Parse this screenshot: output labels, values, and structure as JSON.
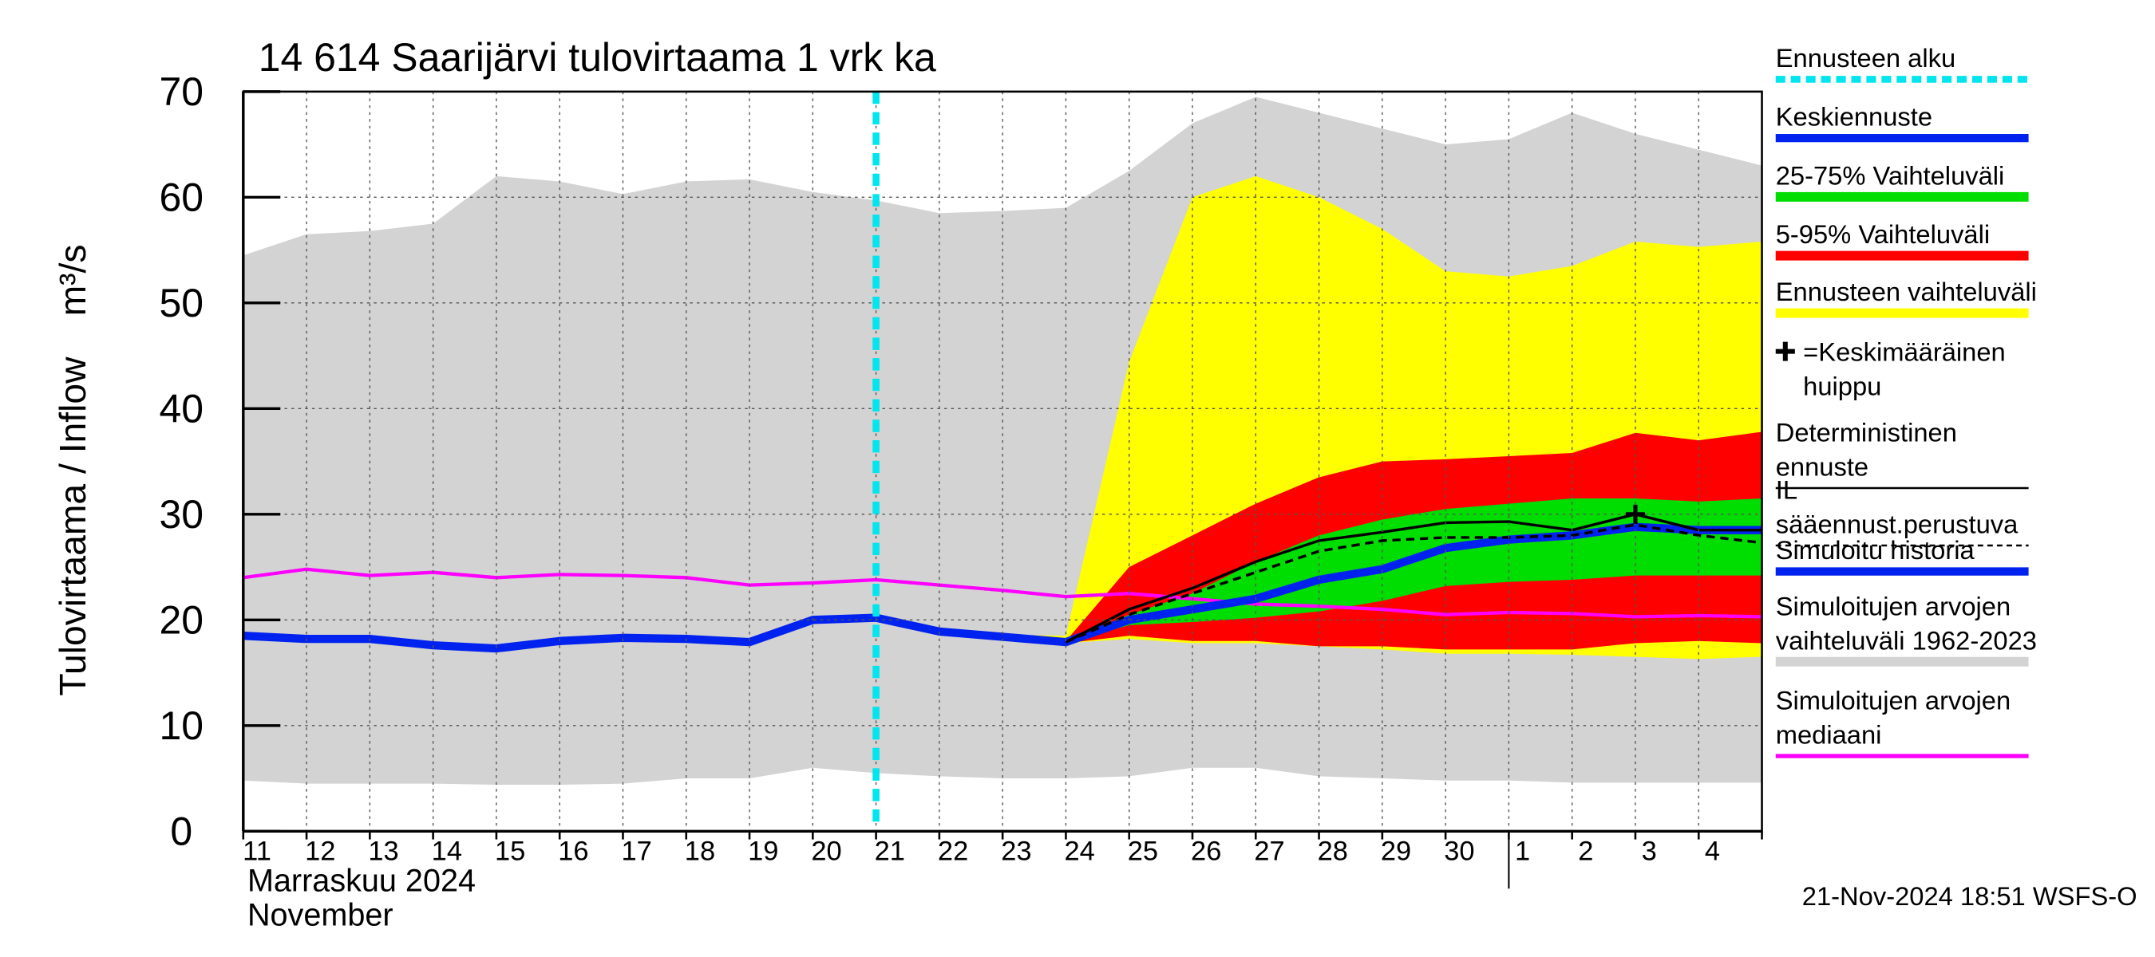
{
  "chart_data": {
    "type": "area",
    "title": "14 614 Saarijärvi tulovirtaama 1 vrk ka",
    "y_label": "Tulovirtaama / Inflow",
    "y_unit": "m³/s",
    "month_label": "Marraskuu 2024",
    "month_label_en": "November",
    "footer": "21-Nov-2024 18:51 WSFS-O",
    "categories": [
      "11",
      "12",
      "13",
      "14",
      "15",
      "16",
      "17",
      "18",
      "19",
      "20",
      "21",
      "22",
      "23",
      "24",
      "25",
      "26",
      "27",
      "28",
      "29",
      "30",
      "1",
      "2",
      "3",
      "4",
      null
    ],
    "month_start": "1",
    "ylim": [
      0,
      70
    ],
    "yticks": [
      0,
      10,
      20,
      30,
      40,
      50,
      60,
      70
    ],
    "grid": true,
    "forecast_start": {
      "name": "Ennusteen alku",
      "category": "21",
      "color": "#00e5ee"
    },
    "peak": {
      "name": "=Keskimääräinen huippu",
      "category": "3",
      "value": 30,
      "color": "#000000"
    },
    "series": [
      {
        "name": "Keskiennuste",
        "kind": "line",
        "color": "#0022ee",
        "width": 6,
        "values": [
          null,
          null,
          null,
          null,
          null,
          null,
          null,
          null,
          null,
          null,
          20.2,
          18.9,
          18.4,
          17.9,
          20,
          21,
          22,
          23.8,
          24.8,
          26.8,
          27.6,
          28,
          28.8,
          28.5,
          28.5
        ]
      },
      {
        "name": "25-75% Vaihteluväli",
        "kind": "band",
        "color": "#00dd00",
        "upper": [
          null,
          null,
          null,
          null,
          null,
          null,
          null,
          null,
          null,
          null,
          null,
          null,
          null,
          18,
          20.5,
          22.5,
          25.5,
          28,
          29.5,
          30.5,
          31,
          31.5,
          31.5,
          31.2,
          31.5
        ],
        "lower": [
          null,
          null,
          null,
          null,
          null,
          null,
          null,
          null,
          null,
          null,
          null,
          null,
          null,
          17.8,
          19.5,
          19.8,
          20.2,
          20.8,
          21.8,
          23.2,
          23.6,
          23.8,
          24.2,
          24.2,
          24.2
        ]
      },
      {
        "name": "5-95% Vaihteluväli",
        "kind": "band",
        "color": "#ff0000",
        "upper": [
          null,
          null,
          null,
          null,
          null,
          null,
          null,
          null,
          null,
          null,
          null,
          null,
          null,
          18,
          25,
          28,
          31,
          33.5,
          35,
          35.2,
          35.5,
          35.8,
          37.7,
          37,
          37.8
        ],
        "lower": [
          null,
          null,
          null,
          null,
          null,
          null,
          null,
          null,
          null,
          null,
          null,
          null,
          null,
          17.8,
          18.5,
          18,
          18,
          17.5,
          17.5,
          17.2,
          17.2,
          17.2,
          17.8,
          18,
          17.8
        ]
      },
      {
        "name": "Ennusteen vaihteluväli",
        "kind": "band",
        "color": "#ffff00",
        "upper": [
          null,
          null,
          null,
          null,
          null,
          null,
          null,
          null,
          null,
          null,
          20.3,
          19.2,
          18.6,
          18.5,
          44.4,
          60,
          62,
          60,
          57,
          53,
          52.5,
          53.5,
          55.8,
          55.3,
          55.8
        ],
        "lower": [
          null,
          null,
          null,
          null,
          null,
          null,
          null,
          null,
          null,
          null,
          20,
          18.8,
          18.2,
          17.8,
          18.2,
          17.8,
          17.8,
          17.5,
          17.2,
          16.8,
          16.8,
          16.7,
          16.5,
          16.3,
          16.5
        ]
      },
      {
        "name": "Deterministinen ennuste",
        "kind": "line",
        "color": "#000000",
        "width": 2,
        "values": [
          null,
          null,
          null,
          null,
          null,
          null,
          null,
          null,
          null,
          null,
          null,
          null,
          null,
          17.9,
          21,
          23,
          25.5,
          27.5,
          28.3,
          29.2,
          29.3,
          28.5,
          30,
          28.5,
          28.5
        ]
      },
      {
        "name": "IL sääennust.perustuva",
        "kind": "line",
        "color": "#000000",
        "width": 2,
        "dashed": true,
        "values": [
          null,
          null,
          null,
          null,
          null,
          null,
          null,
          null,
          null,
          null,
          null,
          null,
          null,
          17.9,
          20.5,
          22.5,
          24.5,
          26.5,
          27.5,
          27.8,
          27.8,
          28,
          29,
          28,
          27.3
        ]
      },
      {
        "name": "Simuloitu historia",
        "kind": "line",
        "color": "#0022ee",
        "width": 6,
        "values": [
          18.5,
          18.2,
          18.2,
          17.6,
          17.3,
          18,
          18.3,
          18.2,
          17.9,
          20,
          20.2,
          null,
          null,
          null,
          null,
          null,
          null,
          null,
          null,
          null,
          null,
          null,
          null,
          null,
          null
        ]
      },
      {
        "name": "Simuloitujen arvojen vaihteluväli 1962-2023",
        "kind": "band",
        "color": "#d3d3d3",
        "upper": [
          54.5,
          56.5,
          56.8,
          57.5,
          62,
          61.5,
          60.3,
          61.5,
          61.7,
          60.5,
          59.7,
          58.5,
          58.7,
          59,
          62.5,
          67,
          69.5,
          68,
          66.5,
          65,
          65.5,
          68,
          66,
          64.5,
          63
        ],
        "lower": [
          4.8,
          4.5,
          4.5,
          4.5,
          4.4,
          4.4,
          4.5,
          5,
          5,
          6,
          5.5,
          5.2,
          5,
          5,
          5.2,
          6,
          6,
          5.2,
          5,
          4.8,
          4.8,
          4.6,
          4.6,
          4.6,
          4.6
        ]
      },
      {
        "name": "Simuloitujen arvojen mediaani",
        "kind": "line",
        "color": "#ff00ff",
        "width": 2.5,
        "values": [
          24,
          24.8,
          24.2,
          24.5,
          24,
          24.3,
          24.2,
          24,
          23.3,
          23.5,
          23.8,
          23.3,
          22.8,
          22.2,
          22.5,
          22,
          21.5,
          21.3,
          21,
          20.5,
          20.7,
          20.6,
          20.3,
          20.4,
          20.3
        ]
      }
    ]
  }
}
